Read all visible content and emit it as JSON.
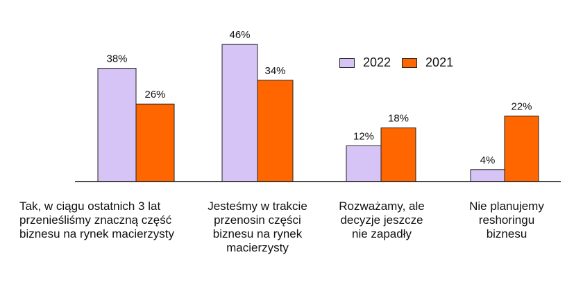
{
  "chart_data": {
    "type": "bar",
    "categories": [
      "Tak, w ciągu ostatnich 3 lat\nprzenieśliśmy znaczną część\nbiznesu na rynek macierzysty",
      "Jesteśmy w trakcie\nprzenosin części\nbiznesu na rynek\nmacierzysty",
      "Rozważamy, ale\ndecyzje jeszcze\nnie zapadły",
      "Nie planujemy\nreshoringu\nbiznesu"
    ],
    "series": [
      {
        "name": "2022",
        "color": "#d5c4f5",
        "values": [
          38,
          46,
          12,
          4
        ]
      },
      {
        "name": "2021",
        "color": "#ff6600",
        "values": [
          26,
          34,
          18,
          22
        ]
      }
    ],
    "value_suffix": "%",
    "ylim": [
      0,
      50
    ],
    "grid": false,
    "legend_position": "top-right"
  }
}
